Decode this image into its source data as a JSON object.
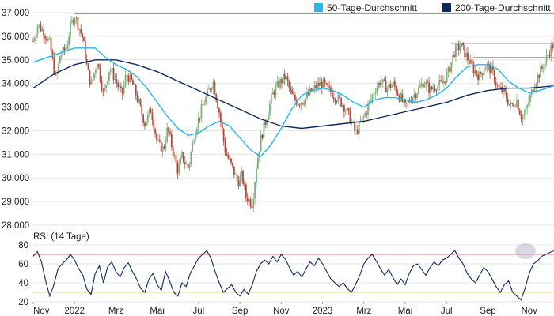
{
  "colors": {
    "ma50": "#29b5e8",
    "ma200": "#0d2a5e",
    "candle_up": "#7fae7f",
    "candle_down": "#b04a3c",
    "resistance": "#e07a7a",
    "horizontal_ref": "#9a9a9a",
    "rsi_line": "#0d2a5e",
    "rsi_high": "#e07a7a",
    "rsi_low": "#e0d27a",
    "grid": "#e6e6e6",
    "axis_text": "#222222",
    "highlight": "#b8b8c8"
  },
  "chart_data": [
    {
      "type": "candlestick",
      "title": "",
      "legend_position": "top-right",
      "legend": [
        {
          "label": "50-Tage-Durchschnitt",
          "color_key": "ma50"
        },
        {
          "label": "200-Tage-Durchschnitt",
          "color_key": "ma200"
        }
      ],
      "ylim": [
        28000,
        37000
      ],
      "y_ticks": [
        {
          "value": 37000,
          "label": "37.000"
        },
        {
          "value": 36000,
          "label": "36.000"
        },
        {
          "value": 35000,
          "label": "35.000"
        },
        {
          "value": 34000,
          "label": "34.000"
        },
        {
          "value": 33000,
          "label": "33.000"
        },
        {
          "value": 32000,
          "label": "32.000"
        },
        {
          "value": 31000,
          "label": "31.000"
        },
        {
          "value": 30000,
          "label": "30.000"
        },
        {
          "value": 29000,
          "label": "29.000"
        },
        {
          "value": 28000,
          "label": "28.000"
        }
      ],
      "x_range_months": [
        0,
        25.2
      ],
      "x_ticks": [
        {
          "month": 0,
          "label": "Nov"
        },
        {
          "month": 2,
          "label": "2022"
        },
        {
          "month": 4,
          "label": "Mrz"
        },
        {
          "month": 6,
          "label": "Mai"
        },
        {
          "month": 8,
          "label": "Jul"
        },
        {
          "month": 10,
          "label": "Sep"
        },
        {
          "month": 12,
          "label": "Nov"
        },
        {
          "month": 14,
          "label": "2023"
        },
        {
          "month": 16,
          "label": "Mrz"
        },
        {
          "month": 18,
          "label": "Mai"
        },
        {
          "month": 20,
          "label": "Jul"
        },
        {
          "month": 22,
          "label": "Sep"
        },
        {
          "month": 24,
          "label": "Nov"
        }
      ],
      "price_path": [
        [
          0.0,
          35800
        ],
        [
          0.2,
          36500
        ],
        [
          0.5,
          36200
        ],
        [
          0.8,
          35700
        ],
        [
          1.1,
          34100
        ],
        [
          1.3,
          35200
        ],
        [
          1.6,
          35500
        ],
        [
          1.8,
          36400
        ],
        [
          2.0,
          36900
        ],
        [
          2.2,
          36400
        ],
        [
          2.4,
          35900
        ],
        [
          2.6,
          34700
        ],
        [
          2.8,
          33900
        ],
        [
          3.1,
          35000
        ],
        [
          3.4,
          33500
        ],
        [
          3.7,
          34700
        ],
        [
          4.0,
          34100
        ],
        [
          4.3,
          33500
        ],
        [
          4.5,
          34400
        ],
        [
          4.8,
          34000
        ],
        [
          5.1,
          33200
        ],
        [
          5.4,
          32300
        ],
        [
          5.7,
          32900
        ],
        [
          6.0,
          31500
        ],
        [
          6.3,
          31200
        ],
        [
          6.5,
          32100
        ],
        [
          6.8,
          31000
        ],
        [
          7.0,
          30300
        ],
        [
          7.2,
          30900
        ],
        [
          7.5,
          30400
        ],
        [
          7.8,
          31900
        ],
        [
          8.1,
          32800
        ],
        [
          8.4,
          33500
        ],
        [
          8.7,
          34100
        ],
        [
          9.0,
          32800
        ],
        [
          9.3,
          31100
        ],
        [
          9.6,
          30500
        ],
        [
          9.9,
          29800
        ],
        [
          10.1,
          30100
        ],
        [
          10.3,
          29200
        ],
        [
          10.6,
          28900
        ],
        [
          10.8,
          30500
        ],
        [
          11.0,
          31600
        ],
        [
          11.3,
          32600
        ],
        [
          11.6,
          33600
        ],
        [
          11.9,
          34000
        ],
        [
          12.2,
          34300
        ],
        [
          12.5,
          33500
        ],
        [
          12.8,
          33200
        ],
        [
          13.1,
          33300
        ],
        [
          13.4,
          33600
        ],
        [
          13.7,
          33900
        ],
        [
          14.0,
          34000
        ],
        [
          14.3,
          33700
        ],
        [
          14.7,
          33400
        ],
        [
          15.0,
          33100
        ],
        [
          15.3,
          32600
        ],
        [
          15.6,
          31900
        ],
        [
          15.9,
          32400
        ],
        [
          16.2,
          33000
        ],
        [
          16.5,
          33700
        ],
        [
          16.8,
          34100
        ],
        [
          17.1,
          33800
        ],
        [
          17.4,
          34000
        ],
        [
          17.7,
          33500
        ],
        [
          18.0,
          33000
        ],
        [
          18.3,
          33400
        ],
        [
          18.6,
          33700
        ],
        [
          18.9,
          34100
        ],
        [
          19.2,
          33700
        ],
        [
          19.5,
          33900
        ],
        [
          19.8,
          34000
        ],
        [
          20.1,
          34500
        ],
        [
          20.4,
          35400
        ],
        [
          20.7,
          35600
        ],
        [
          21.0,
          35100
        ],
        [
          21.3,
          34600
        ],
        [
          21.6,
          34300
        ],
        [
          21.9,
          34800
        ],
        [
          22.2,
          34500
        ],
        [
          22.5,
          33800
        ],
        [
          22.8,
          33600
        ],
        [
          23.1,
          33000
        ],
        [
          23.4,
          33300
        ],
        [
          23.6,
          32600
        ],
        [
          23.8,
          32700
        ],
        [
          24.0,
          33300
        ],
        [
          24.3,
          34100
        ],
        [
          24.6,
          34600
        ],
        [
          24.9,
          35200
        ],
        [
          25.1,
          35600
        ]
      ],
      "ma50_path": [
        [
          0.0,
          34900
        ],
        [
          1.0,
          35200
        ],
        [
          2.0,
          35500
        ],
        [
          3.0,
          35500
        ],
        [
          3.5,
          35100
        ],
        [
          4.0,
          34800
        ],
        [
          4.5,
          34600
        ],
        [
          5.0,
          34300
        ],
        [
          5.5,
          33800
        ],
        [
          6.0,
          33200
        ],
        [
          6.5,
          32600
        ],
        [
          7.0,
          32100
        ],
        [
          7.5,
          31800
        ],
        [
          8.0,
          31900
        ],
        [
          8.5,
          32200
        ],
        [
          9.0,
          32400
        ],
        [
          9.5,
          32200
        ],
        [
          10.0,
          31700
        ],
        [
          10.5,
          31200
        ],
        [
          11.0,
          30900
        ],
        [
          11.5,
          31400
        ],
        [
          12.0,
          32100
        ],
        [
          12.5,
          32900
        ],
        [
          13.0,
          33500
        ],
        [
          13.5,
          33700
        ],
        [
          14.0,
          33800
        ],
        [
          14.5,
          33700
        ],
        [
          15.0,
          33500
        ],
        [
          15.5,
          33200
        ],
        [
          16.0,
          33000
        ],
        [
          16.5,
          33300
        ],
        [
          17.0,
          33400
        ],
        [
          17.5,
          33400
        ],
        [
          18.0,
          33300
        ],
        [
          18.5,
          33200
        ],
        [
          19.0,
          33300
        ],
        [
          19.5,
          33500
        ],
        [
          20.0,
          33800
        ],
        [
          20.5,
          34300
        ],
        [
          21.0,
          34700
        ],
        [
          21.5,
          34800
        ],
        [
          22.0,
          34800
        ],
        [
          22.5,
          34600
        ],
        [
          23.0,
          34100
        ],
        [
          23.5,
          33800
        ],
        [
          24.0,
          33600
        ],
        [
          24.5,
          33700
        ],
        [
          25.2,
          33900
        ]
      ],
      "ma200_path": [
        [
          0.0,
          33800
        ],
        [
          1.0,
          34400
        ],
        [
          2.0,
          34800
        ],
        [
          3.0,
          35000
        ],
        [
          4.0,
          35000
        ],
        [
          5.0,
          34800
        ],
        [
          6.0,
          34500
        ],
        [
          7.0,
          34100
        ],
        [
          8.0,
          33700
        ],
        [
          9.0,
          33300
        ],
        [
          10.0,
          32900
        ],
        [
          11.0,
          32500
        ],
        [
          12.0,
          32200
        ],
        [
          13.0,
          32100
        ],
        [
          14.0,
          32200
        ],
        [
          15.0,
          32300
        ],
        [
          16.0,
          32400
        ],
        [
          17.0,
          32600
        ],
        [
          18.0,
          32800
        ],
        [
          19.0,
          33000
        ],
        [
          20.0,
          33200
        ],
        [
          21.0,
          33500
        ],
        [
          22.0,
          33700
        ],
        [
          23.0,
          33800
        ],
        [
          24.0,
          33800
        ],
        [
          25.2,
          33900
        ]
      ],
      "resistance_line": {
        "value": 36950,
        "from_month": 2.0,
        "to_month": 25.2
      },
      "reference_lines": [
        {
          "value": 35700,
          "from_month": 20.2,
          "to_month": 25.2
        },
        {
          "value": 35100,
          "from_month": 21.3,
          "to_month": 25.2
        }
      ]
    },
    {
      "type": "line",
      "title": "RSI (14 Tage)",
      "ylim": [
        20,
        80
      ],
      "y_ticks": [
        {
          "value": 80,
          "label": "80"
        },
        {
          "value": 60,
          "label": "60"
        },
        {
          "value": 40,
          "label": "40"
        },
        {
          "value": 20,
          "label": "20"
        }
      ],
      "overbought": 70,
      "oversold": 30,
      "rsi_path": [
        [
          0.0,
          68
        ],
        [
          0.2,
          73
        ],
        [
          0.4,
          62
        ],
        [
          0.6,
          42
        ],
        [
          0.8,
          26
        ],
        [
          1.0,
          38
        ],
        [
          1.2,
          55
        ],
        [
          1.4,
          60
        ],
        [
          1.6,
          64
        ],
        [
          1.8,
          70
        ],
        [
          2.0,
          64
        ],
        [
          2.2,
          55
        ],
        [
          2.4,
          48
        ],
        [
          2.6,
          33
        ],
        [
          2.8,
          28
        ],
        [
          3.0,
          50
        ],
        [
          3.2,
          58
        ],
        [
          3.4,
          40
        ],
        [
          3.6,
          57
        ],
        [
          3.8,
          62
        ],
        [
          4.0,
          52
        ],
        [
          4.2,
          46
        ],
        [
          4.4,
          56
        ],
        [
          4.6,
          61
        ],
        [
          4.8,
          52
        ],
        [
          5.0,
          44
        ],
        [
          5.2,
          34
        ],
        [
          5.4,
          30
        ],
        [
          5.6,
          44
        ],
        [
          5.8,
          50
        ],
        [
          6.0,
          38
        ],
        [
          6.2,
          32
        ],
        [
          6.4,
          52
        ],
        [
          6.6,
          42
        ],
        [
          6.8,
          30
        ],
        [
          7.0,
          26
        ],
        [
          7.2,
          40
        ],
        [
          7.4,
          36
        ],
        [
          7.6,
          50
        ],
        [
          7.8,
          58
        ],
        [
          8.0,
          66
        ],
        [
          8.2,
          70
        ],
        [
          8.4,
          74
        ],
        [
          8.6,
          66
        ],
        [
          8.8,
          52
        ],
        [
          9.0,
          40
        ],
        [
          9.2,
          30
        ],
        [
          9.4,
          34
        ],
        [
          9.6,
          38
        ],
        [
          9.8,
          30
        ],
        [
          10.0,
          26
        ],
        [
          10.2,
          33
        ],
        [
          10.4,
          28
        ],
        [
          10.6,
          38
        ],
        [
          10.8,
          52
        ],
        [
          11.0,
          60
        ],
        [
          11.2,
          64
        ],
        [
          11.4,
          60
        ],
        [
          11.6,
          68
        ],
        [
          11.8,
          62
        ],
        [
          12.0,
          70
        ],
        [
          12.2,
          65
        ],
        [
          12.4,
          56
        ],
        [
          12.6,
          48
        ],
        [
          12.8,
          52
        ],
        [
          13.0,
          46
        ],
        [
          13.2,
          55
        ],
        [
          13.4,
          62
        ],
        [
          13.6,
          58
        ],
        [
          13.8,
          66
        ],
        [
          14.0,
          60
        ],
        [
          14.2,
          52
        ],
        [
          14.4,
          44
        ],
        [
          14.6,
          40
        ],
        [
          14.8,
          36
        ],
        [
          15.0,
          40
        ],
        [
          15.2,
          34
        ],
        [
          15.4,
          30
        ],
        [
          15.6,
          38
        ],
        [
          15.8,
          48
        ],
        [
          16.0,
          60
        ],
        [
          16.2,
          66
        ],
        [
          16.4,
          70
        ],
        [
          16.6,
          63
        ],
        [
          16.8,
          55
        ],
        [
          17.0,
          48
        ],
        [
          17.2,
          54
        ],
        [
          17.4,
          46
        ],
        [
          17.6,
          38
        ],
        [
          17.8,
          44
        ],
        [
          18.0,
          38
        ],
        [
          18.2,
          50
        ],
        [
          18.4,
          58
        ],
        [
          18.6,
          60
        ],
        [
          18.8,
          54
        ],
        [
          19.0,
          48
        ],
        [
          19.2,
          56
        ],
        [
          19.4,
          62
        ],
        [
          19.6,
          58
        ],
        [
          19.8,
          64
        ],
        [
          20.0,
          66
        ],
        [
          20.2,
          70
        ],
        [
          20.4,
          74
        ],
        [
          20.6,
          66
        ],
        [
          20.8,
          60
        ],
        [
          21.0,
          50
        ],
        [
          21.2,
          44
        ],
        [
          21.4,
          40
        ],
        [
          21.6,
          48
        ],
        [
          21.8,
          56
        ],
        [
          22.0,
          52
        ],
        [
          22.2,
          44
        ],
        [
          22.4,
          36
        ],
        [
          22.6,
          30
        ],
        [
          22.8,
          38
        ],
        [
          23.0,
          42
        ],
        [
          23.2,
          30
        ],
        [
          23.4,
          26
        ],
        [
          23.6,
          22
        ],
        [
          23.8,
          34
        ],
        [
          24.0,
          50
        ],
        [
          24.2,
          60
        ],
        [
          24.4,
          63
        ],
        [
          24.6,
          68
        ],
        [
          24.8,
          70
        ],
        [
          25.0,
          72
        ],
        [
          25.2,
          74
        ]
      ]
    }
  ]
}
